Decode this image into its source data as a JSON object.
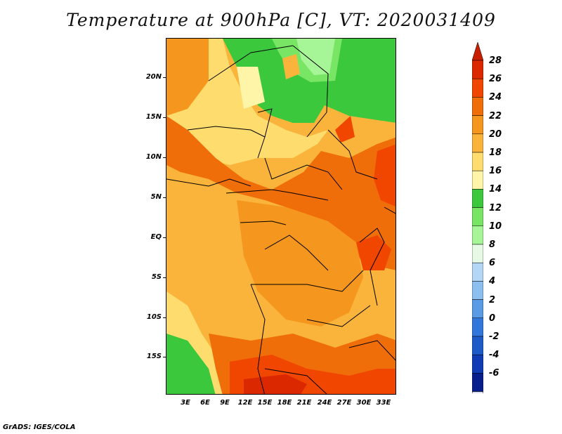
{
  "title": "Temperature at 900hPa [C], VT: 2020031409",
  "footer": "GrADS: IGES/COLA",
  "lat_ticks": [
    "20N",
    "15N",
    "10N",
    "5N",
    "EQ",
    "5S",
    "10S",
    "15S"
  ],
  "lon_ticks": [
    "3E",
    "6E",
    "9E",
    "12E",
    "15E",
    "18E",
    "21E",
    "24E",
    "27E",
    "30E",
    "33E"
  ],
  "colorbar": {
    "labels": [
      "28",
      "26",
      "24",
      "22",
      "20",
      "18",
      "16",
      "14",
      "12",
      "10",
      "8",
      "6",
      "4",
      "2",
      "0",
      "-2",
      "-4",
      "-6"
    ],
    "colors": [
      "#dc2800",
      "#f04600",
      "#f06e0a",
      "#f5961e",
      "#fab43c",
      "#ffdc6e",
      "#fff5a8",
      "#3cc83c",
      "#78e664",
      "#a6f596",
      "#e6fae6",
      "#b4d7f5",
      "#8cbef0",
      "#5a9be6",
      "#3278dc",
      "#1e5ac8",
      "#0f3cb4",
      "#081e8c"
    ],
    "top_arrow_color": "#c81e00",
    "bottom_arrow_color": "#dde0f5"
  }
}
